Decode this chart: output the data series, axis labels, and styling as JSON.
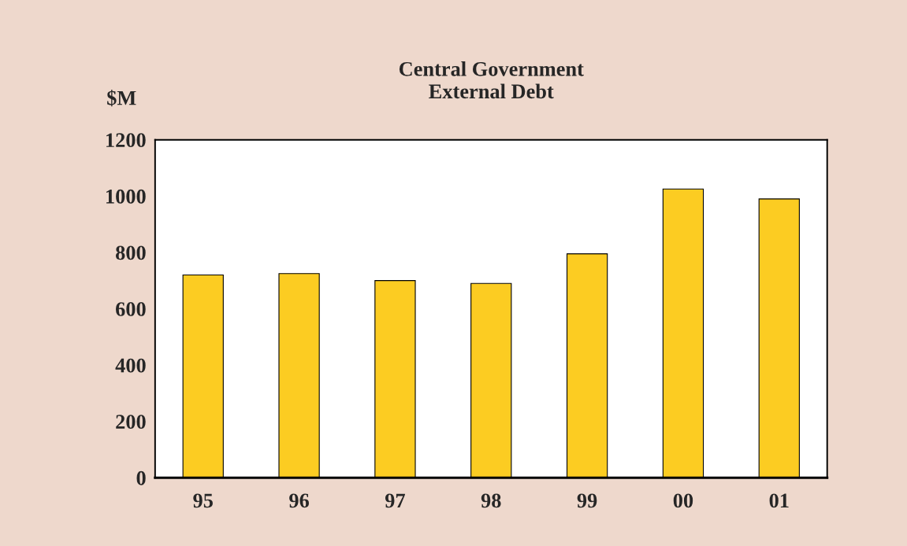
{
  "chart_data": {
    "type": "bar",
    "title": "Central Government\nExternal Debt",
    "ylabel": "$M",
    "categories": [
      "95",
      "96",
      "97",
      "98",
      "99",
      "00",
      "01"
    ],
    "values": [
      720,
      725,
      700,
      690,
      795,
      1025,
      990
    ],
    "color": "#fccc22",
    "ylim": [
      0,
      1200
    ],
    "yticks": [
      0,
      200,
      400,
      600,
      800,
      1000,
      1200
    ],
    "grid": false
  }
}
